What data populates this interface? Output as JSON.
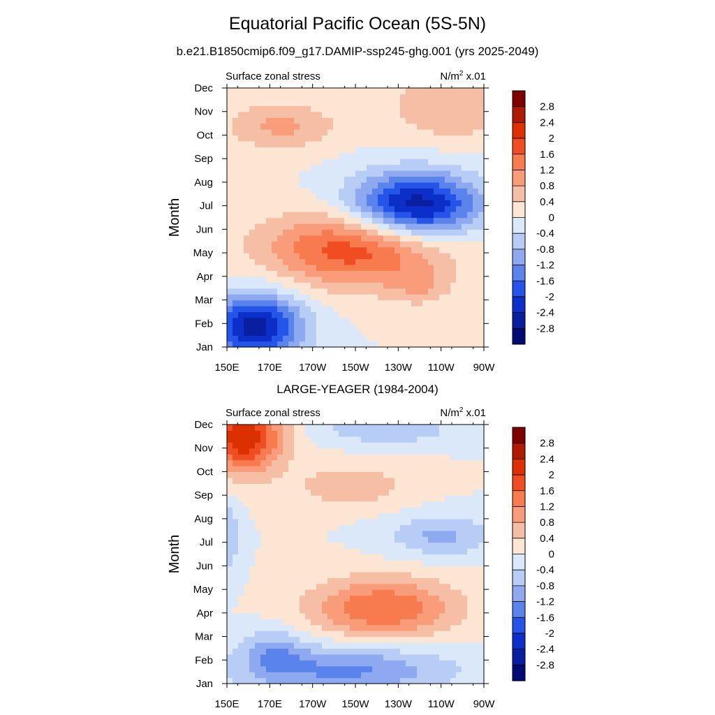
{
  "header": {
    "title": "Equatorial Pacific Ocean (5S-5N)"
  },
  "colorbar": {
    "levels": [
      "2.8",
      "2.4",
      "2",
      "1.6",
      "1.2",
      "0.8",
      "0.4",
      "0",
      "-0.4",
      "-0.8",
      "-1.2",
      "-1.6",
      "-2",
      "-2.4",
      "-2.8"
    ],
    "colors": [
      "#7f0000",
      "#b01a00",
      "#dc3000",
      "#f04d22",
      "#f87a4f",
      "#f99c79",
      "#f7bea6",
      "#fde5d3",
      "#dbe8fa",
      "#b7cdf6",
      "#8ea9f0",
      "#5b83ec",
      "#2455e8",
      "#0c2fc9",
      "#0a1ea0",
      "#000b73"
    ]
  },
  "chart_data": [
    {
      "type": "heatmap",
      "title": "b.e21.B1850cmip6.f09_g17.DAMIP-ssp245-ghg.001 (yrs 2025-2049)",
      "left_label": "Surface zonal stress",
      "right_label_main": "N/m",
      "right_label_sup": "2",
      "right_label_tail": " x.01",
      "ylabel": "Month",
      "x_ticks": [
        "150E",
        "170E",
        "170W",
        "150W",
        "130W",
        "110W",
        "90W"
      ],
      "y_ticks": [
        "Jan",
        "Feb",
        "Mar",
        "Apr",
        "May",
        "Jun",
        "Jul",
        "Aug",
        "Sep",
        "Oct",
        "Nov",
        "Dec"
      ],
      "x_range": [
        150,
        270
      ],
      "y_range": [
        1,
        12
      ],
      "zlim": [
        -3.2,
        3.2
      ],
      "blobs": [
        {
          "x": 163,
          "y": 1.9,
          "rx": 22,
          "ry": 1.4,
          "a": -2.6,
          "rot": -22
        },
        {
          "x": 210,
          "y": 5.2,
          "rx": 42,
          "ry": 1.6,
          "a": 1.9,
          "rot": -25
        },
        {
          "x": 240,
          "y": 3.6,
          "rx": 14,
          "ry": 0.8,
          "a": 0.6,
          "rot": 0
        },
        {
          "x": 238,
          "y": 7.0,
          "rx": 30,
          "ry": 1.4,
          "a": -2.8,
          "rot": -15
        },
        {
          "x": 175,
          "y": 10.4,
          "rx": 26,
          "ry": 1.0,
          "a": 0.9,
          "rot": 0
        },
        {
          "x": 255,
          "y": 11.2,
          "rx": 30,
          "ry": 1.4,
          "a": 0.8,
          "rot": 0
        }
      ]
    },
    {
      "type": "heatmap",
      "title": "LARGE-YEAGER (1984-2004)",
      "left_label": "Surface zonal stress",
      "right_label_main": "N/m",
      "right_label_sup": "2",
      "right_label_tail": " x.01",
      "ylabel": "Month",
      "x_ticks": [
        "150E",
        "170E",
        "170W",
        "150W",
        "130W",
        "110W",
        "90W"
      ],
      "y_ticks": [
        "Jan",
        "Feb",
        "Mar",
        "Apr",
        "May",
        "Jun",
        "Jul",
        "Aug",
        "Sep",
        "Oct",
        "Nov",
        "Dec"
      ],
      "x_range": [
        150,
        270
      ],
      "y_range": [
        1,
        12
      ],
      "zlim": [
        -3.2,
        3.2
      ],
      "blobs": [
        {
          "x": 158,
          "y": 11.5,
          "rx": 18,
          "ry": 1.5,
          "a": 2.4,
          "rot": 0
        },
        {
          "x": 223,
          "y": 4.2,
          "rx": 34,
          "ry": 1.3,
          "a": 1.6,
          "rot": -5
        },
        {
          "x": 208,
          "y": 9.4,
          "rx": 28,
          "ry": 0.9,
          "a": 0.7,
          "rot": 0
        },
        {
          "x": 205,
          "y": 1.6,
          "rx": 50,
          "ry": 1.1,
          "a": -1.3,
          "rot": 8
        },
        {
          "x": 172,
          "y": 2.4,
          "rx": 14,
          "ry": 1.0,
          "a": -0.8,
          "rot": 0
        },
        {
          "x": 250,
          "y": 7.3,
          "rx": 24,
          "ry": 0.9,
          "a": -0.9,
          "rot": 0
        },
        {
          "x": 225,
          "y": 11.8,
          "rx": 30,
          "ry": 0.6,
          "a": -0.8,
          "rot": 0
        },
        {
          "x": 150,
          "y": 7.2,
          "rx": 6,
          "ry": 1.6,
          "a": -0.8,
          "rot": 0
        }
      ]
    }
  ]
}
